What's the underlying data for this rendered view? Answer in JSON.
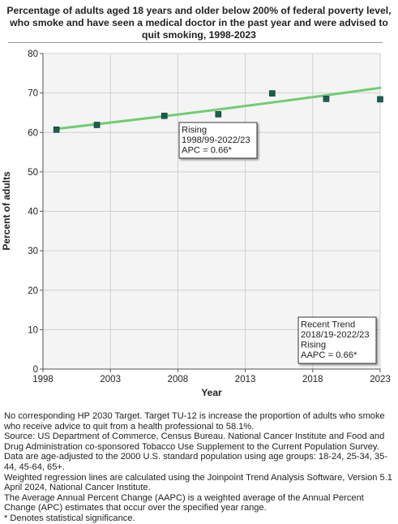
{
  "title": "Percentage of  adults aged 18 years and older below 200% of federal poverty level, who smoke and have seen a medical doctor in the past year and were advised to quit smoking, 1998-2023",
  "chart_data": {
    "type": "scatter",
    "xlabel": "Year",
    "ylabel": "Percent of adults",
    "xlim": [
      1998,
      2023
    ],
    "ylim": [
      0,
      80
    ],
    "x_ticks": [
      1998,
      2003,
      2008,
      2013,
      2018,
      2023
    ],
    "y_ticks": [
      0,
      10,
      20,
      30,
      40,
      50,
      60,
      70,
      80
    ],
    "points": [
      {
        "x": 1999,
        "y": 60.7
      },
      {
        "x": 2002,
        "y": 61.9
      },
      {
        "x": 2007,
        "y": 64.2
      },
      {
        "x": 2011,
        "y": 64.6
      },
      {
        "x": 2015,
        "y": 69.9
      },
      {
        "x": 2019,
        "y": 68.5
      },
      {
        "x": 2023,
        "y": 68.4
      }
    ],
    "trend_line": {
      "x": [
        1999,
        2003,
        2007,
        2011,
        2015,
        2019,
        2023
      ],
      "y": [
        60.9,
        62.5,
        64.1,
        65.8,
        67.6,
        69.4,
        71.3
      ]
    },
    "annotations": [
      {
        "lines": [
          "Rising",
          "1998/99-2022/23",
          "APC =  0.66*"
        ]
      },
      {
        "lines": [
          "Recent Trend",
          "2018/19-2022/23",
          "Rising",
          "AAPC =  0.66*"
        ]
      }
    ],
    "colors": {
      "marker": "#1b5e4f",
      "trend": "#72cc72",
      "plot_bg": "#f4f4f4",
      "grid": "#d0d0d0"
    },
    "grid": true
  },
  "footnotes": [
    "No corresponding HP 2030 Target. Target TU-12 is increase the proportion of adults who smoke who receive advice to quit from a health professional to 58.1%.",
    "Source: US Department of Commerce, Census Bureau. National Cancer Institute and Food and Drug Administration co-sponsored Tobacco Use Supplement to the Current Population Survey.",
    "Data are age-adjusted to the 2000 U.S. standard population using age groups: 18-24, 25-34, 35-44, 45-64, 65+.",
    "Weighted regression lines are calculated using the Joinpoint Trend Analysis Software, Version 5.1 April 2024, National Cancer Institute.",
    "The Average Annual Percent Change (AAPC) is a weighted average of the Annual Percent Change (APC) estimates that occur over the specified year range.",
    "* Denotes statistical significance."
  ]
}
